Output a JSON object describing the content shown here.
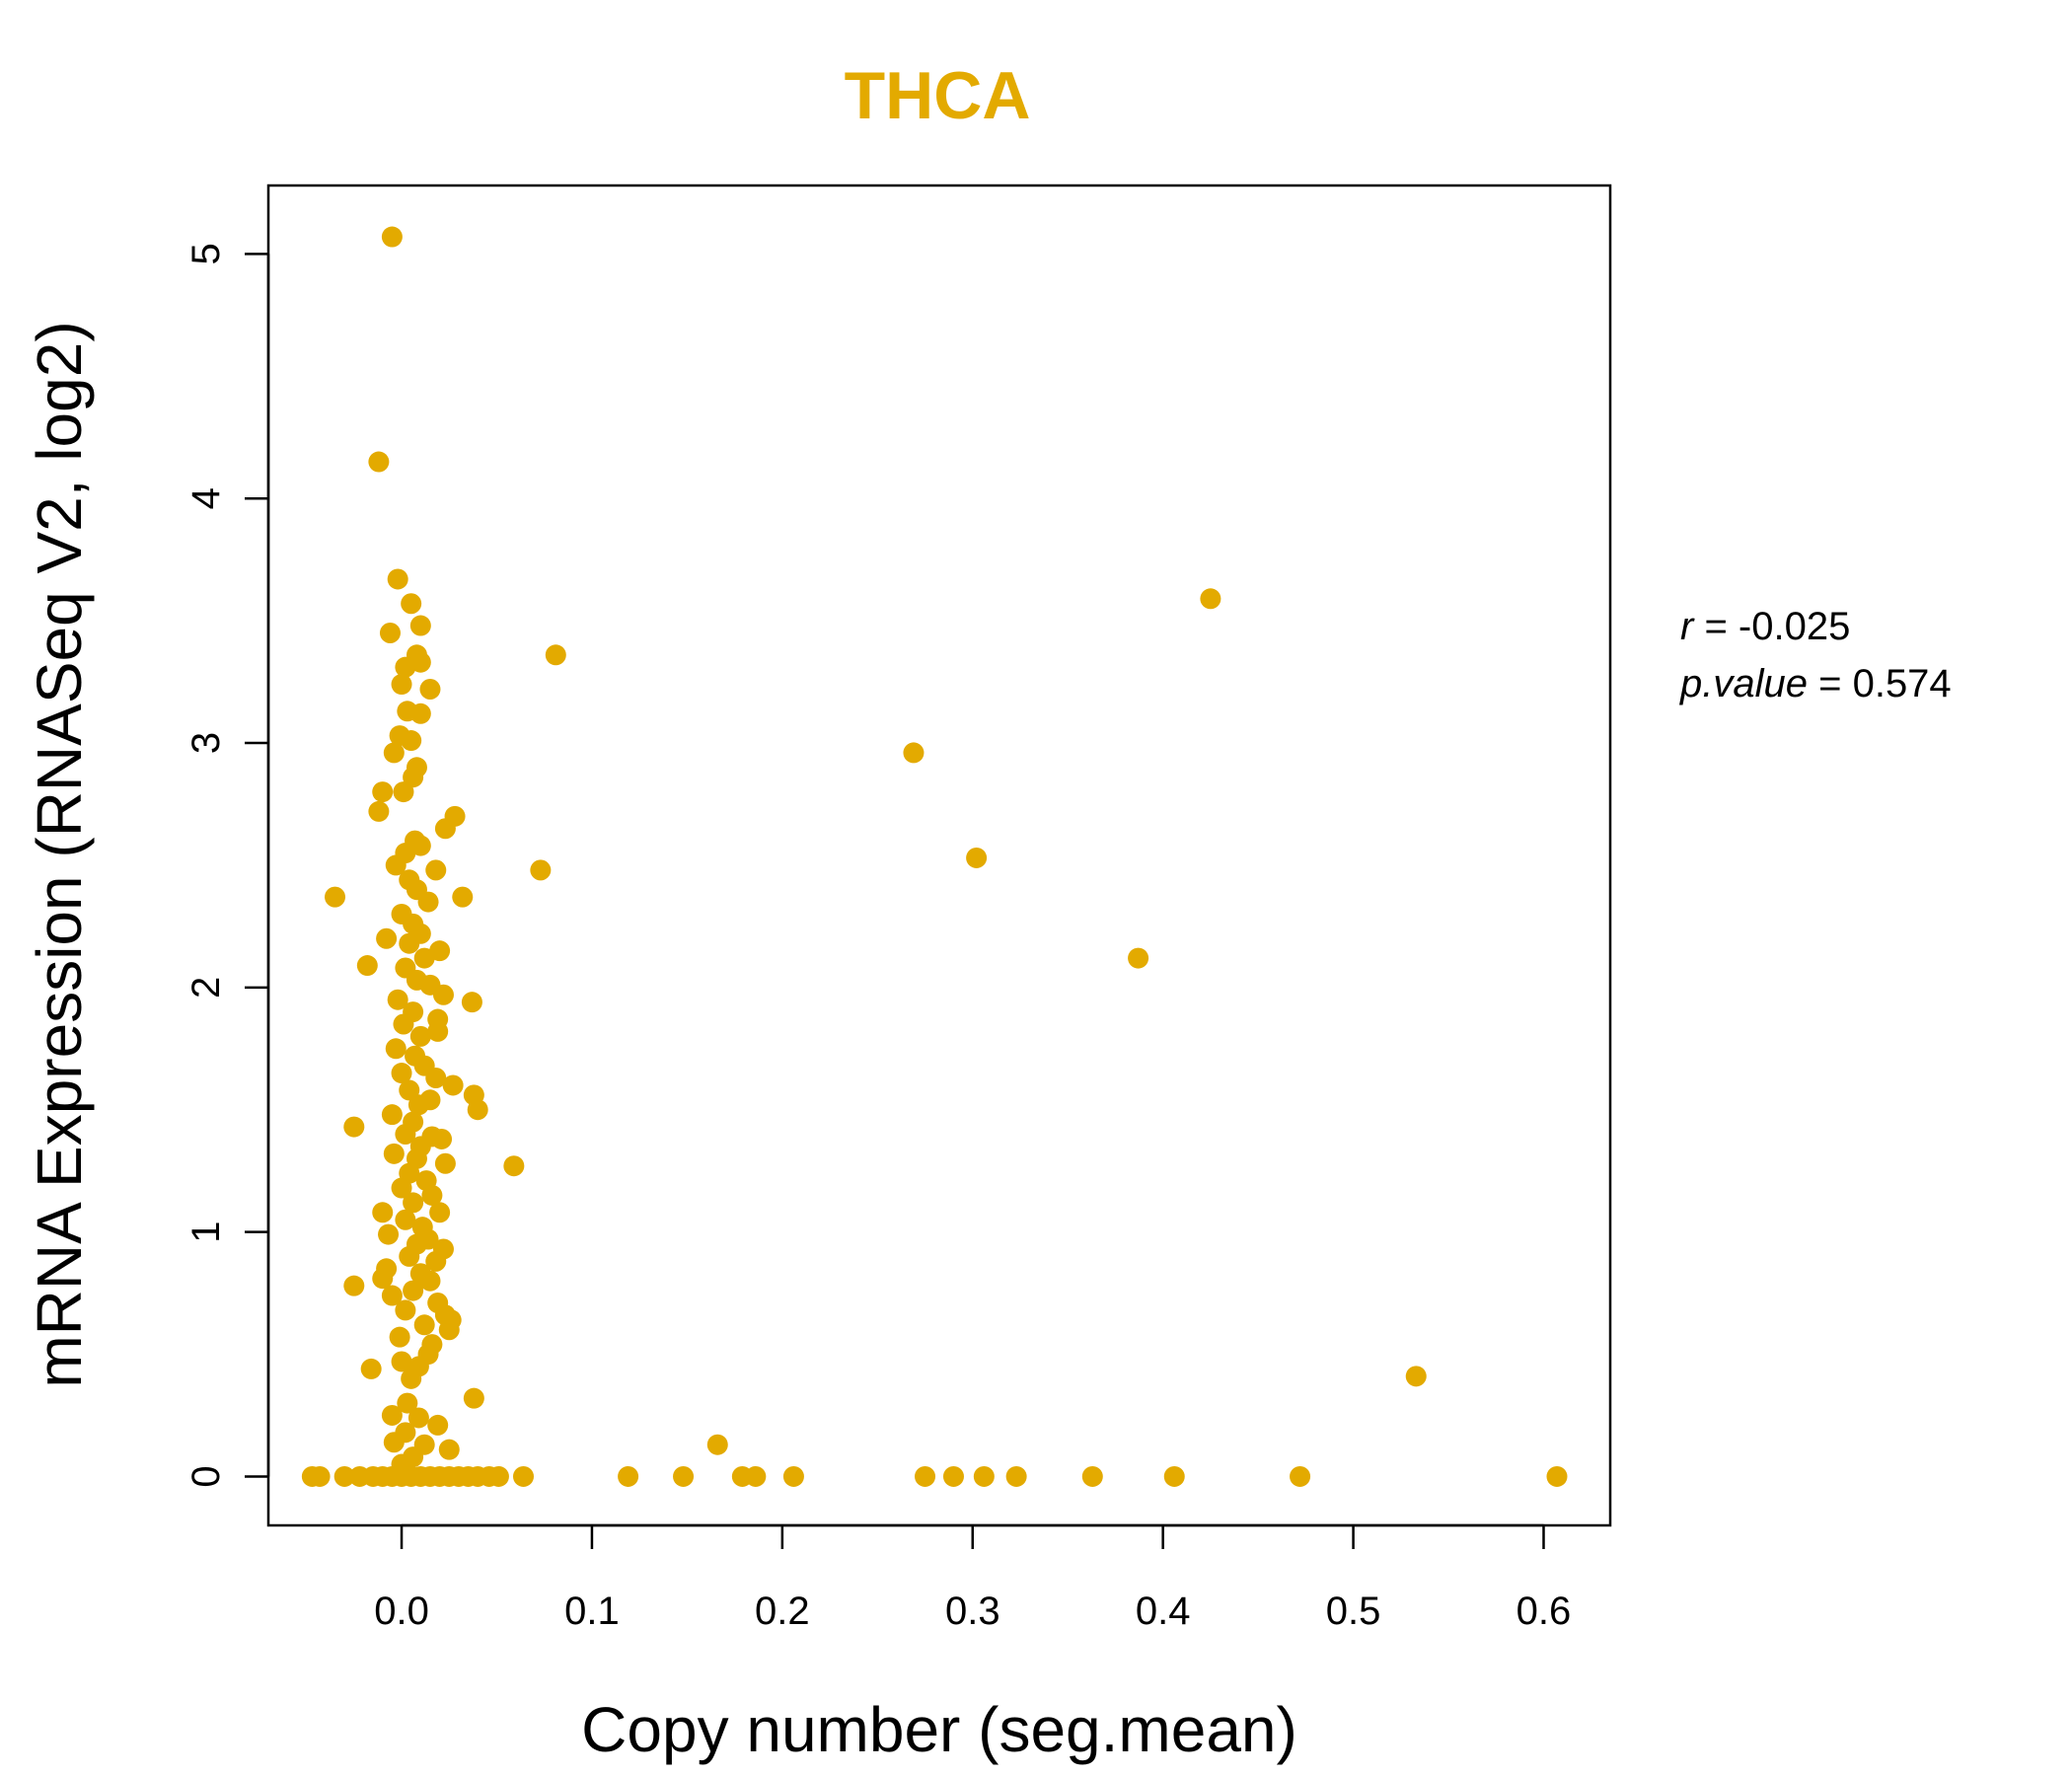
{
  "chart_data": {
    "type": "scatter",
    "title": "THCA",
    "xlabel": "Copy number (seg.mean)",
    "ylabel": "mRNA Expression (RNASeq V2, log2)",
    "xlim": [
      -0.07,
      0.635
    ],
    "ylim": [
      -0.2,
      5.28
    ],
    "x_ticks": [
      "0.0",
      "0.1",
      "0.2",
      "0.3",
      "0.4",
      "0.5",
      "0.6"
    ],
    "y_ticks": [
      "0",
      "1",
      "2",
      "3",
      "4",
      "5"
    ],
    "grid": false,
    "legend": "none",
    "point_color": "#E3AA00",
    "stats": {
      "r_label": "r",
      "r_value": "-0.025",
      "p_label": "p.value",
      "p_value": "0.574"
    },
    "points": [
      {
        "x": -0.005,
        "y": 5.07
      },
      {
        "x": -0.012,
        "y": 4.15
      },
      {
        "x": -0.002,
        "y": 3.67
      },
      {
        "x": 0.005,
        "y": 3.57
      },
      {
        "x": -0.006,
        "y": 3.45
      },
      {
        "x": 0.01,
        "y": 3.48
      },
      {
        "x": 0.008,
        "y": 3.36
      },
      {
        "x": 0.002,
        "y": 3.31
      },
      {
        "x": 0.01,
        "y": 3.33
      },
      {
        "x": 0.0,
        "y": 3.24
      },
      {
        "x": 0.015,
        "y": 3.22
      },
      {
        "x": 0.003,
        "y": 3.13
      },
      {
        "x": 0.01,
        "y": 3.12
      },
      {
        "x": -0.001,
        "y": 3.03
      },
      {
        "x": 0.005,
        "y": 3.01
      },
      {
        "x": -0.004,
        "y": 2.96
      },
      {
        "x": 0.008,
        "y": 2.9
      },
      {
        "x": 0.006,
        "y": 2.86
      },
      {
        "x": -0.01,
        "y": 2.8
      },
      {
        "x": 0.001,
        "y": 2.8
      },
      {
        "x": -0.012,
        "y": 2.72
      },
      {
        "x": 0.028,
        "y": 2.7
      },
      {
        "x": 0.023,
        "y": 2.65
      },
      {
        "x": 0.007,
        "y": 2.6
      },
      {
        "x": 0.01,
        "y": 2.58
      },
      {
        "x": 0.002,
        "y": 2.55
      },
      {
        "x": -0.003,
        "y": 2.5
      },
      {
        "x": 0.018,
        "y": 2.48
      },
      {
        "x": 0.004,
        "y": 2.44
      },
      {
        "x": 0.008,
        "y": 2.4
      },
      {
        "x": -0.035,
        "y": 2.37
      },
      {
        "x": 0.032,
        "y": 2.37
      },
      {
        "x": 0.014,
        "y": 2.35
      },
      {
        "x": 0.0,
        "y": 2.3
      },
      {
        "x": 0.006,
        "y": 2.26
      },
      {
        "x": 0.01,
        "y": 2.22
      },
      {
        "x": -0.008,
        "y": 2.2
      },
      {
        "x": 0.004,
        "y": 2.18
      },
      {
        "x": 0.02,
        "y": 2.15
      },
      {
        "x": 0.012,
        "y": 2.12
      },
      {
        "x": -0.018,
        "y": 2.09
      },
      {
        "x": 0.002,
        "y": 2.08
      },
      {
        "x": 0.008,
        "y": 2.03
      },
      {
        "x": 0.015,
        "y": 2.01
      },
      {
        "x": 0.022,
        "y": 1.97
      },
      {
        "x": -0.002,
        "y": 1.95
      },
      {
        "x": 0.037,
        "y": 1.94
      },
      {
        "x": 0.006,
        "y": 1.9
      },
      {
        "x": 0.019,
        "y": 1.87
      },
      {
        "x": 0.001,
        "y": 1.85
      },
      {
        "x": 0.019,
        "y": 1.82
      },
      {
        "x": 0.01,
        "y": 1.8
      },
      {
        "x": -0.003,
        "y": 1.75
      },
      {
        "x": 0.007,
        "y": 1.72
      },
      {
        "x": 0.012,
        "y": 1.68
      },
      {
        "x": 0.0,
        "y": 1.65
      },
      {
        "x": 0.018,
        "y": 1.63
      },
      {
        "x": 0.027,
        "y": 1.6
      },
      {
        "x": 0.004,
        "y": 1.58
      },
      {
        "x": 0.038,
        "y": 1.56
      },
      {
        "x": 0.015,
        "y": 1.54
      },
      {
        "x": 0.009,
        "y": 1.52
      },
      {
        "x": 0.04,
        "y": 1.5
      },
      {
        "x": -0.005,
        "y": 1.48
      },
      {
        "x": 0.006,
        "y": 1.45
      },
      {
        "x": -0.025,
        "y": 1.43
      },
      {
        "x": 0.002,
        "y": 1.4
      },
      {
        "x": 0.016,
        "y": 1.39
      },
      {
        "x": 0.021,
        "y": 1.38
      },
      {
        "x": 0.01,
        "y": 1.35
      },
      {
        "x": -0.004,
        "y": 1.32
      },
      {
        "x": 0.008,
        "y": 1.3
      },
      {
        "x": 0.023,
        "y": 1.28
      },
      {
        "x": 0.059,
        "y": 1.27
      },
      {
        "x": 0.004,
        "y": 1.24
      },
      {
        "x": 0.013,
        "y": 1.21
      },
      {
        "x": 0.0,
        "y": 1.18
      },
      {
        "x": 0.016,
        "y": 1.15
      },
      {
        "x": 0.006,
        "y": 1.12
      },
      {
        "x": 0.02,
        "y": 1.08
      },
      {
        "x": -0.01,
        "y": 1.08
      },
      {
        "x": 0.002,
        "y": 1.05
      },
      {
        "x": 0.011,
        "y": 1.02
      },
      {
        "x": -0.007,
        "y": 0.99
      },
      {
        "x": 0.014,
        "y": 0.97
      },
      {
        "x": 0.008,
        "y": 0.95
      },
      {
        "x": 0.022,
        "y": 0.93
      },
      {
        "x": 0.004,
        "y": 0.9
      },
      {
        "x": 0.018,
        "y": 0.88
      },
      {
        "x": -0.008,
        "y": 0.85
      },
      {
        "x": 0.01,
        "y": 0.83
      },
      {
        "x": -0.01,
        "y": 0.81
      },
      {
        "x": 0.015,
        "y": 0.8
      },
      {
        "x": -0.025,
        "y": 0.78
      },
      {
        "x": 0.006,
        "y": 0.76
      },
      {
        "x": -0.005,
        "y": 0.74
      },
      {
        "x": 0.019,
        "y": 0.71
      },
      {
        "x": 0.002,
        "y": 0.68
      },
      {
        "x": 0.023,
        "y": 0.66
      },
      {
        "x": 0.026,
        "y": 0.64
      },
      {
        "x": 0.012,
        "y": 0.62
      },
      {
        "x": 0.025,
        "y": 0.6
      },
      {
        "x": -0.001,
        "y": 0.57
      },
      {
        "x": 0.016,
        "y": 0.54
      },
      {
        "x": 0.014,
        "y": 0.5
      },
      {
        "x": 0.0,
        "y": 0.47
      },
      {
        "x": 0.009,
        "y": 0.45
      },
      {
        "x": -0.016,
        "y": 0.44
      },
      {
        "x": 0.005,
        "y": 0.4
      },
      {
        "x": 0.038,
        "y": 0.32
      },
      {
        "x": 0.003,
        "y": 0.3
      },
      {
        "x": -0.005,
        "y": 0.25
      },
      {
        "x": 0.009,
        "y": 0.24
      },
      {
        "x": 0.019,
        "y": 0.21
      },
      {
        "x": 0.002,
        "y": 0.18
      },
      {
        "x": -0.004,
        "y": 0.14
      },
      {
        "x": 0.012,
        "y": 0.13
      },
      {
        "x": 0.025,
        "y": 0.11
      },
      {
        "x": 0.006,
        "y": 0.08
      },
      {
        "x": 0.0,
        "y": 0.05
      },
      {
        "x": 0.073,
        "y": 2.48
      },
      {
        "x": 0.081,
        "y": 3.36
      },
      {
        "x": 0.166,
        "y": 0.13
      },
      {
        "x": 0.269,
        "y": 2.96
      },
      {
        "x": 0.302,
        "y": 2.53
      },
      {
        "x": 0.387,
        "y": 2.12
      },
      {
        "x": 0.425,
        "y": 3.59
      },
      {
        "x": 0.533,
        "y": 0.41
      },
      {
        "x": -0.047,
        "y": 0
      },
      {
        "x": -0.043,
        "y": 0
      },
      {
        "x": -0.03,
        "y": 0
      },
      {
        "x": -0.022,
        "y": 0
      },
      {
        "x": -0.015,
        "y": 0
      },
      {
        "x": -0.01,
        "y": 0
      },
      {
        "x": -0.005,
        "y": 0
      },
      {
        "x": 0.0,
        "y": 0
      },
      {
        "x": 0.005,
        "y": 0
      },
      {
        "x": 0.01,
        "y": 0
      },
      {
        "x": 0.015,
        "y": 0
      },
      {
        "x": 0.02,
        "y": 0
      },
      {
        "x": 0.025,
        "y": 0
      },
      {
        "x": 0.03,
        "y": 0
      },
      {
        "x": 0.035,
        "y": 0
      },
      {
        "x": 0.04,
        "y": 0
      },
      {
        "x": 0.046,
        "y": 0
      },
      {
        "x": 0.051,
        "y": 0
      },
      {
        "x": 0.064,
        "y": 0
      },
      {
        "x": 0.119,
        "y": 0
      },
      {
        "x": 0.148,
        "y": 0
      },
      {
        "x": 0.179,
        "y": 0
      },
      {
        "x": 0.186,
        "y": 0
      },
      {
        "x": 0.206,
        "y": 0
      },
      {
        "x": 0.275,
        "y": 0
      },
      {
        "x": 0.29,
        "y": 0
      },
      {
        "x": 0.306,
        "y": 0
      },
      {
        "x": 0.323,
        "y": 0
      },
      {
        "x": 0.363,
        "y": 0
      },
      {
        "x": 0.406,
        "y": 0
      },
      {
        "x": 0.472,
        "y": 0
      },
      {
        "x": 0.607,
        "y": 0
      }
    ]
  }
}
